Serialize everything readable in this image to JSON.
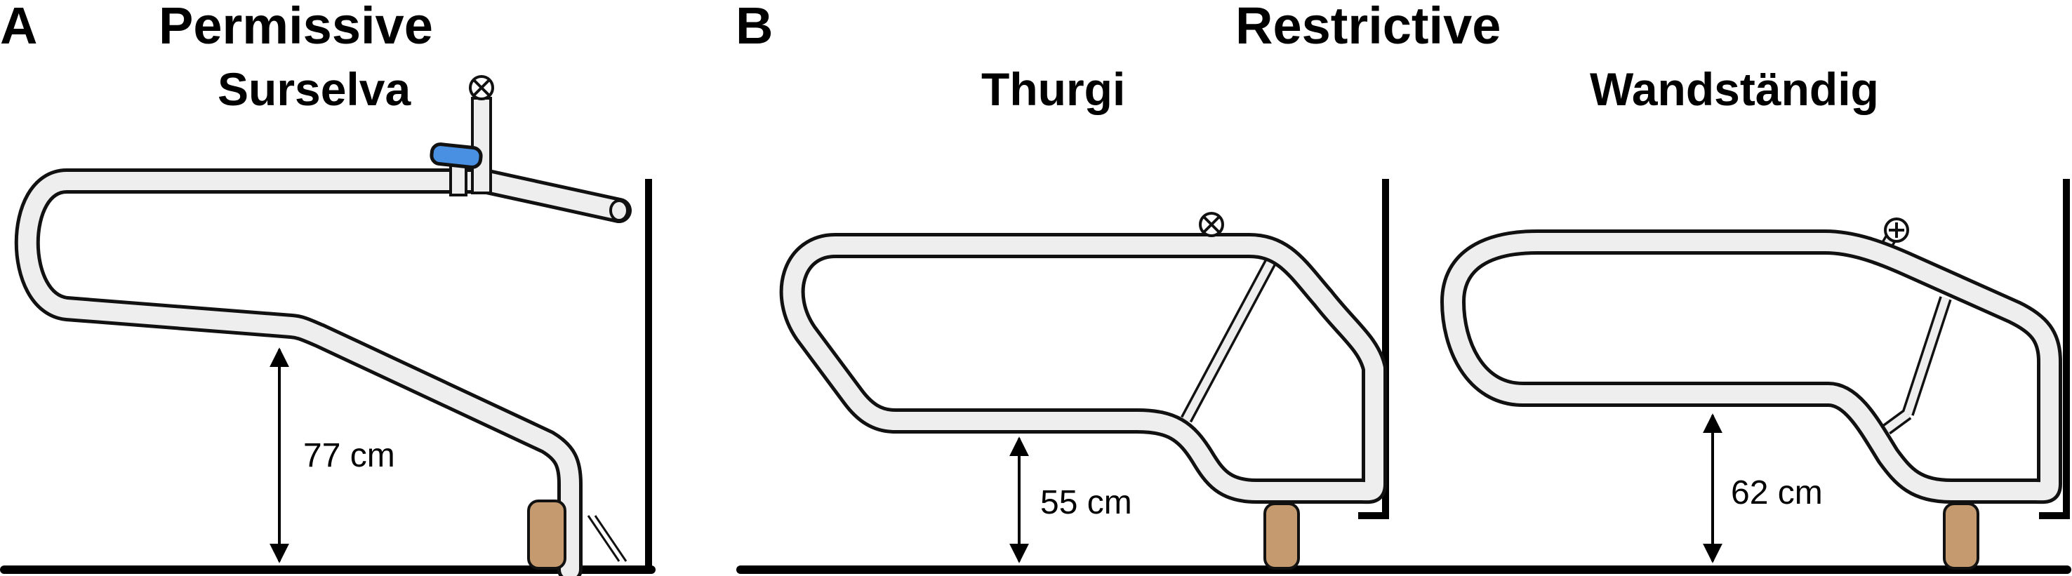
{
  "panels": {
    "a": {
      "letter": "A",
      "heading": "Permissive",
      "systems": [
        {
          "name": "Surselva",
          "height_label": "77 cm"
        }
      ]
    },
    "b": {
      "letter": "B",
      "heading": "Restrictive",
      "systems": [
        {
          "name": "Thurgi",
          "height_label": "55 cm"
        },
        {
          "name": "Wandständig",
          "height_label": "62 cm"
        }
      ]
    }
  },
  "colors": {
    "tube_fill": "#eeeeee",
    "outline": "#111111",
    "post": "#c59a6e",
    "handle": "#4a90e2"
  },
  "icons": [
    "valve-icon",
    "handle-icon"
  ]
}
